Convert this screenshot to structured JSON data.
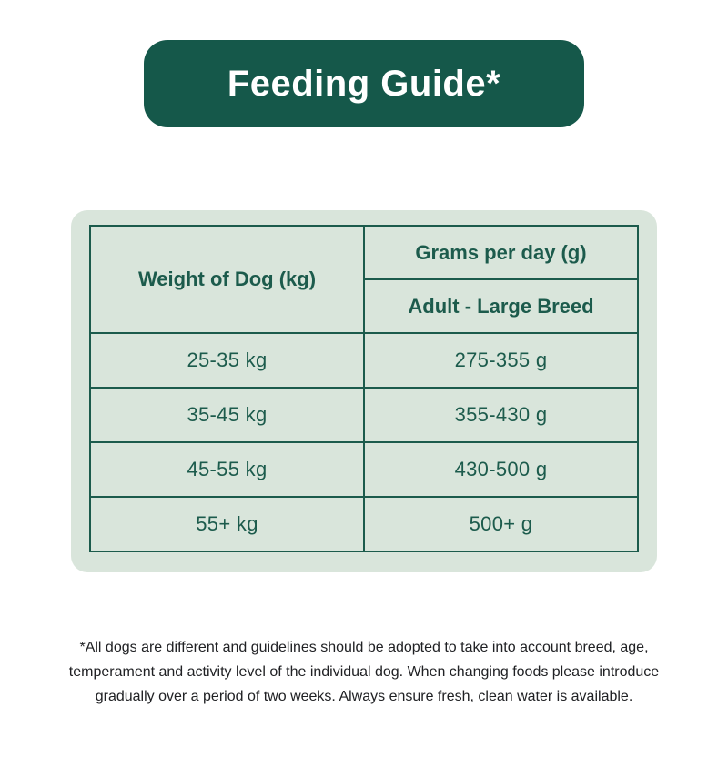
{
  "banner": {
    "title": "Feeding Guide*"
  },
  "table": {
    "weight_header": "Weight of Dog (kg)",
    "grams_header": "Grams per day (g)",
    "breed_header": "Adult - Large Breed",
    "rows": [
      {
        "weight": "25-35 kg",
        "grams": "275-355 g"
      },
      {
        "weight": "35-45 kg",
        "grams": "355-430 g"
      },
      {
        "weight": "45-55 kg",
        "grams": "430-500 g"
      },
      {
        "weight": "55+ kg",
        "grams": "500+ g"
      }
    ]
  },
  "footnote": "*All dogs are different and guidelines should be adopted to take into account breed, age, temperament and activity level of the individual dog. When changing foods please introduce gradually over a period of two weeks. Always ensure fresh, clean water is available.",
  "colors": {
    "banner_green": "#15584a",
    "panel_mint": "#d9e5db",
    "table_border_green": "#1c5b4c",
    "table_text_green": "#1c5b4c",
    "banner_text": "#ffffff",
    "footnote_text": "#202124",
    "page_background": "#ffffff"
  },
  "chart_data": {
    "type": "table",
    "title": "Feeding Guide*",
    "columns": [
      "Weight of Dog (kg)",
      "Grams per day (g)"
    ],
    "column_subheaders": [
      "",
      "Adult - Large Breed"
    ],
    "rows": [
      [
        "25-35 kg",
        "275-355 g"
      ],
      [
        "35-45 kg",
        "355-430 g"
      ],
      [
        "45-55 kg",
        "430-500 g"
      ],
      [
        "55+ kg",
        "500+ g"
      ]
    ],
    "footnote": "*All dogs are different and guidelines should be adopted to take into account breed, age, temperament and activity level of the individual dog. When changing foods please introduce gradually over a period of two weeks. Always ensure fresh, clean water is available."
  }
}
